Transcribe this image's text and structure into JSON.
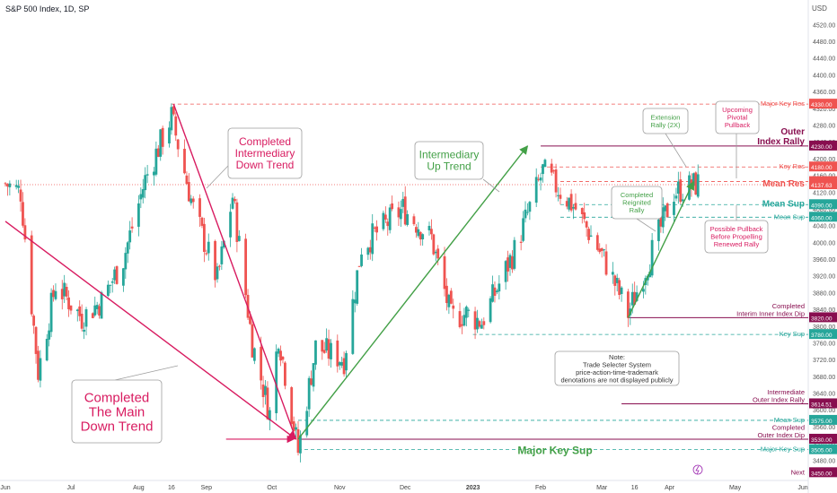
{
  "chart_data": {
    "type": "candlestick",
    "title": "S&P 500 Index, 1D, SP",
    "currency": "USD",
    "ylim": [
      3440,
      4540
    ],
    "y_ticks": [
      3480,
      3520,
      3560,
      3600,
      3640,
      3680,
      3720,
      3760,
      3800,
      3840,
      3880,
      3920,
      3960,
      4000,
      4040,
      4080,
      4120,
      4160,
      4200,
      4240,
      4280,
      4320,
      4360,
      4400,
      4440,
      4480,
      4520
    ],
    "x_range": [
      "2022-06-01",
      "2023-06-01"
    ],
    "x_ticks": [
      {
        "label": "Jun",
        "date": "2022-06-01"
      },
      {
        "label": "Jul",
        "date": "2022-07-01"
      },
      {
        "label": "Aug",
        "date": "2022-08-01"
      },
      {
        "label": "16",
        "date": "2022-08-16"
      },
      {
        "label": "Sep",
        "date": "2022-09-01"
      },
      {
        "label": "Oct",
        "date": "2022-10-01"
      },
      {
        "label": "Nov",
        "date": "2022-11-01"
      },
      {
        "label": "Dec",
        "date": "2022-12-01"
      },
      {
        "label": "2023",
        "date": "2023-01-01"
      },
      {
        "label": "Feb",
        "date": "2023-02-01"
      },
      {
        "label": "Mar",
        "date": "2023-03-01"
      },
      {
        "label": "16",
        "date": "2023-03-16"
      },
      {
        "label": "Apr",
        "date": "2023-04-01"
      },
      {
        "label": "May",
        "date": "2023-05-01"
      },
      {
        "label": "Jun",
        "date": "2023-06-01"
      }
    ],
    "up_color": "#26a69a",
    "down_color": "#ef5350",
    "path_points": [
      [
        "2022-06-01",
        4140
      ],
      [
        "2022-06-08",
        4120
      ],
      [
        "2022-06-16",
        3690
      ],
      [
        "2022-06-24",
        3900
      ],
      [
        "2022-07-06",
        3820
      ],
      [
        "2022-07-15",
        3860
      ],
      [
        "2022-07-25",
        3960
      ],
      [
        "2022-08-04",
        4150
      ],
      [
        "2022-08-16",
        4300
      ],
      [
        "2022-08-26",
        4080
      ],
      [
        "2022-09-06",
        3910
      ],
      [
        "2022-09-13",
        4110
      ],
      [
        "2022-09-22",
        3760
      ],
      [
        "2022-09-30",
        3590
      ],
      [
        "2022-10-04",
        3780
      ],
      [
        "2022-10-13",
        3500
      ],
      [
        "2022-10-21",
        3750
      ],
      [
        "2022-11-03",
        3720
      ],
      [
        "2022-11-11",
        3990
      ],
      [
        "2022-11-30",
        4080
      ],
      [
        "2022-12-13",
        4010
      ],
      [
        "2022-12-22",
        3820
      ],
      [
        "2022-12-29",
        3830
      ],
      [
        "2023-01-05",
        3810
      ],
      [
        "2023-01-20",
        3980
      ],
      [
        "2023-02-02",
        4170
      ],
      [
        "2023-02-17",
        4080
      ],
      [
        "2023-03-02",
        3960
      ],
      [
        "2023-03-13",
        3830
      ],
      [
        "2023-03-22",
        3950
      ],
      [
        "2023-04-03",
        4120
      ],
      [
        "2023-04-14",
        4140
      ]
    ],
    "levels": [
      {
        "price": 4330,
        "label": "Major Key Res",
        "value": "4330.00",
        "color": "#ef5350",
        "style": "dashed",
        "from": "2022-08-16"
      },
      {
        "price": 4230,
        "label": "Outer\nIndex Rally",
        "value": "4230.00",
        "color": "#880e4f",
        "style": "solid",
        "from": "2023-02-01"
      },
      {
        "price": 4180,
        "label": "Key Res",
        "value": "4180.00",
        "color": "#ef5350",
        "style": "dashed",
        "from": "2023-02-01"
      },
      {
        "price": 4145,
        "label": "",
        "value": "4145.00",
        "color": "#ef5350",
        "style": "dashed",
        "from": "2023-02-10"
      },
      {
        "price": 4137.63,
        "label": "Mean Res",
        "value": "4137.63",
        "color": "#ef5350",
        "style": "dotted",
        "from": "2022-06-01"
      },
      {
        "price": 4090,
        "label": "Mean Sup",
        "value": "4090.00",
        "color": "#26a69a",
        "style": "dashed",
        "from": "2023-02-10"
      },
      {
        "price": 4060,
        "label": "Mean Sup",
        "value": "4060.00",
        "color": "#26a69a",
        "style": "dashed",
        "from": "2023-02-10"
      },
      {
        "price": 3820,
        "label": "Completed\nInterim Inner Index Dip",
        "value": "3820.00",
        "color": "#880e4f",
        "style": "solid",
        "from": "2023-03-13"
      },
      {
        "price": 3780,
        "label": "Key Sup",
        "value": "3780.00",
        "color": "#26a69a",
        "style": "dashed",
        "from": "2023-01-01"
      },
      {
        "price": 3614.51,
        "label": "Intermediate\nOuter Index Rally",
        "value": "3614.51",
        "color": "#880e4f",
        "style": "solid",
        "from": "2023-03-10"
      },
      {
        "price": 3575,
        "label": "Mean Sup",
        "value": "3575.00",
        "color": "#26a69a",
        "style": "dashed",
        "from": "2022-10-13"
      },
      {
        "price": 3530,
        "label": "Completed\nOuter Index Dip",
        "value": "3530.00",
        "color": "#880e4f",
        "style": "solid",
        "from": "2022-10-13"
      },
      {
        "price": 3505,
        "label": "Major Key Sup",
        "value": "3505.00",
        "color": "#26a69a",
        "style": "dashed",
        "from": "2022-10-13"
      },
      {
        "price": 3450,
        "label": "Next",
        "value": "3450.00",
        "color": "#880e4f",
        "style": "none",
        "from": "2023-06-01"
      }
    ],
    "trend_lines": [
      {
        "from": [
          "2022-06-01",
          4050
        ],
        "to": [
          "2022-10-12",
          3530
        ],
        "color": "#d81b60",
        "arrow": true
      },
      {
        "from": [
          "2022-08-17",
          4330
        ],
        "to": [
          "2022-10-12",
          3530
        ],
        "color": "#d81b60",
        "arrow": false
      },
      {
        "from": [
          "2022-10-13",
          3530
        ],
        "to": [
          "2023-01-26",
          4230
        ],
        "color": "#43a047",
        "arrow": true
      },
      {
        "from": [
          "2023-03-13",
          3820
        ],
        "to": [
          "2023-04-12",
          4145
        ],
        "color": "#43a047",
        "arrow": true
      }
    ],
    "annotations": [
      {
        "name": "completed-main-down-trend",
        "text": "Completed\nThe Main\nDown Trend",
        "color": "#d81b60",
        "size": "large"
      },
      {
        "name": "completed-intermediary-down-trend",
        "text": "Completed\nIntermediary\nDown Trend",
        "color": "#d81b60",
        "size": "medium"
      },
      {
        "name": "intermediary-up-trend",
        "text": "Intermediary\nUp Trend",
        "color": "#43a047",
        "size": "medium"
      },
      {
        "name": "completed-reignited-rally",
        "text": "Completed\nReignited\nRally",
        "color": "#43a047",
        "size": "small"
      },
      {
        "name": "extension-rally",
        "text": "Extension\nRally (2X)",
        "color": "#43a047",
        "size": "small"
      },
      {
        "name": "upcoming-pivotal-pullback",
        "text": "Upcoming\nPivotal\nPullback",
        "color": "#d81b60",
        "size": "small"
      },
      {
        "name": "possible-pullback",
        "text": "Possible Pullback\nBefore Propelling\nRenewed Rally",
        "color": "#d81b60",
        "size": "small"
      },
      {
        "name": "note",
        "text": "Note:\nTrade Selecter System\nprice-action-time-trademark\ndenotations are not displayed publicly",
        "color": "#333333",
        "size": "small"
      }
    ],
    "major_key_sup_text": "Major Key Sup",
    "lightning_icon": "lightning-icon"
  }
}
